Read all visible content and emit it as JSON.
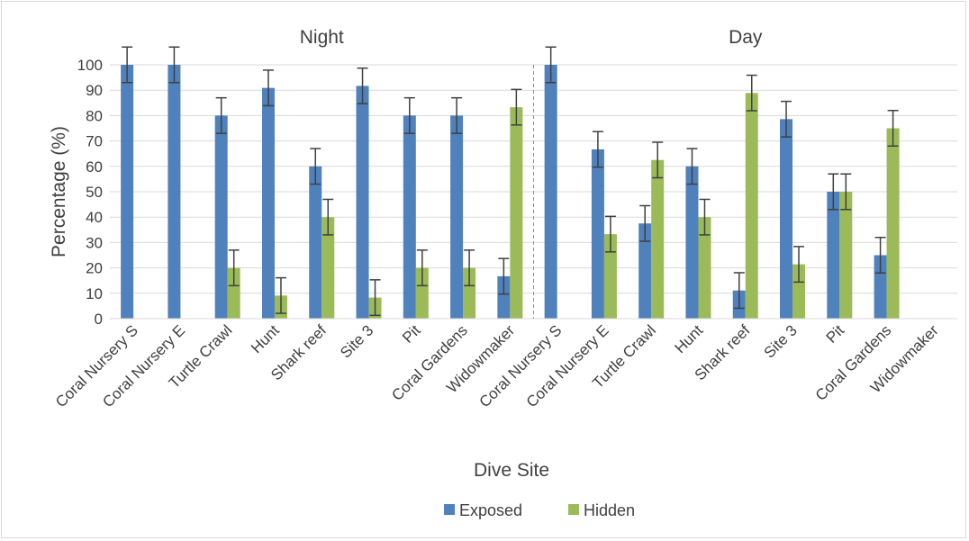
{
  "chart_data": {
    "type": "bar",
    "ylabel": "Percentage (%)",
    "xlabel": "Dive Site",
    "ylim": [
      0,
      100
    ],
    "yticks": [
      0,
      10,
      20,
      30,
      40,
      50,
      60,
      70,
      80,
      90,
      100
    ],
    "grid": true,
    "legend_position": "bottom",
    "colors": {
      "Exposed": "#4f81bd",
      "Hidden": "#9bbb59",
      "error_bar": "#404040",
      "divider": "#5b9bd5"
    },
    "panels": [
      {
        "title": "Night",
        "categories": [
          "Coral Nursery S",
          "Coral Nursery E",
          "Turtle Crawl",
          "Hunt",
          "Shark reef",
          "Site 3",
          "Pit",
          "Coral Gardens",
          "Widowmaker"
        ],
        "series": [
          {
            "name": "Exposed",
            "values": [
              100,
              100,
              80,
              90.9,
              60,
              91.7,
              80,
              80,
              16.7
            ],
            "error": [
              7,
              7,
              7,
              7,
              7,
              7,
              7,
              7,
              7
            ]
          },
          {
            "name": "Hidden",
            "values": [
              0,
              0,
              20,
              9.1,
              40,
              8.3,
              20,
              20,
              83.3
            ],
            "error": [
              0,
              0,
              7,
              7,
              7,
              7,
              7,
              7,
              7
            ]
          }
        ]
      },
      {
        "title": "Day",
        "categories": [
          "Coral Nursery S",
          "Coral Nursery E",
          "Turtle Crawl",
          "Hunt",
          "Shark reef",
          "Site 3",
          "Pit",
          "Coral Gardens",
          "Widowmaker"
        ],
        "series": [
          {
            "name": "Exposed",
            "values": [
              100,
              66.7,
              37.5,
              60,
              11.1,
              78.6,
              50,
              25,
              0
            ],
            "error": [
              7,
              7,
              7,
              7,
              7,
              7,
              7,
              7,
              0
            ]
          },
          {
            "name": "Hidden",
            "values": [
              0,
              33.3,
              62.5,
              40,
              88.9,
              21.4,
              50,
              75,
              0
            ],
            "error": [
              0,
              7,
              7,
              7,
              7,
              7,
              7,
              7,
              0
            ]
          }
        ]
      }
    ]
  }
}
